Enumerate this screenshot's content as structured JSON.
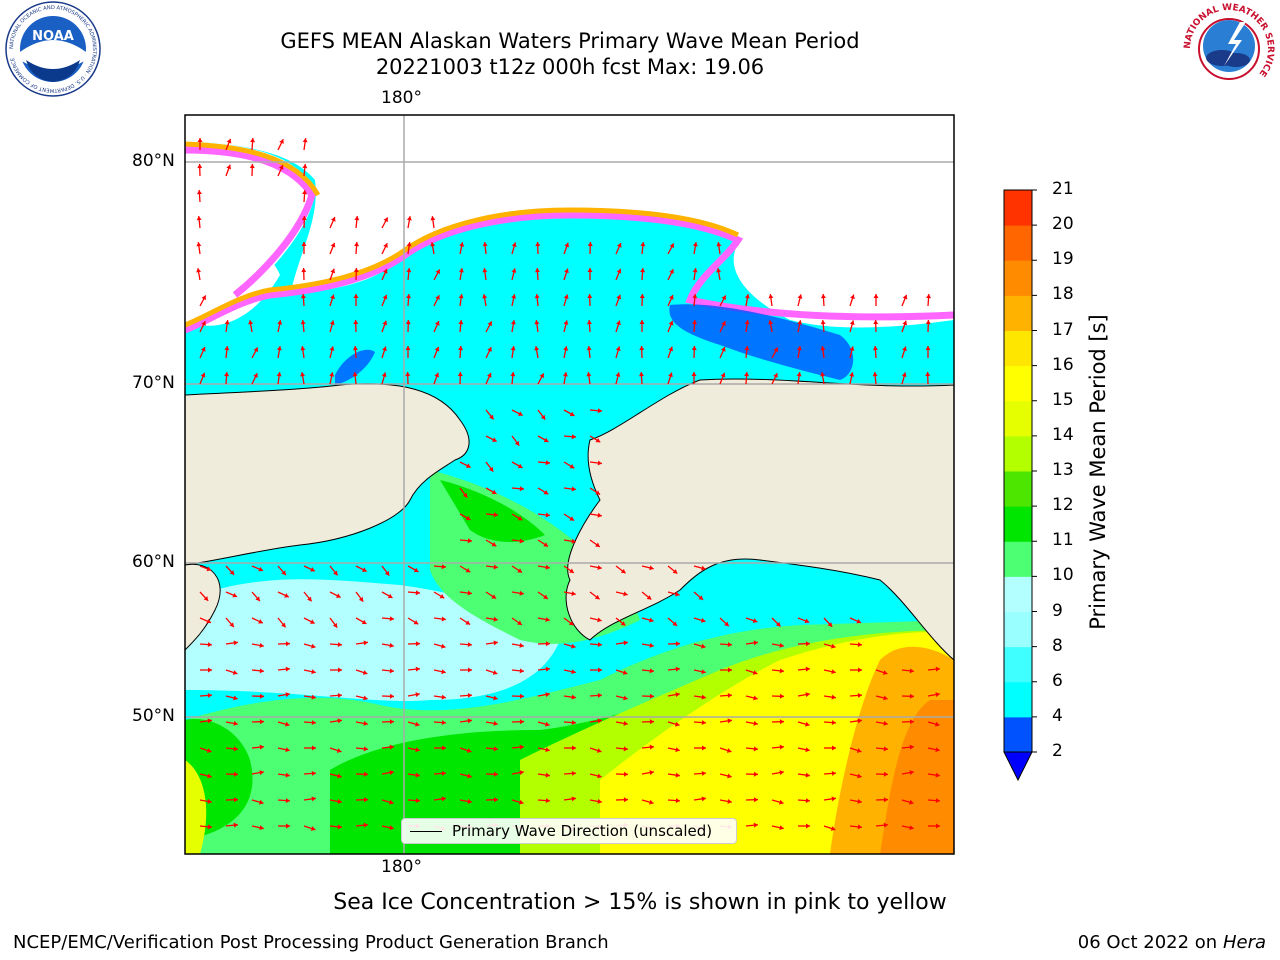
{
  "title": {
    "line1": "GEFS MEAN Alaskan Waters Primary Wave Mean Period",
    "line2": "20221003 t12z 000h fcst   Max: 19.06"
  },
  "map": {
    "top_lon_label": "180°",
    "bottom_lon_label": "180°",
    "lat_labels": [
      "80°N",
      "70°N",
      "60°N",
      "50°N"
    ],
    "legend_text": "Primary Wave Direction (unscaled)",
    "arrow_color": "#ff0000",
    "land_color": "#efecdc"
  },
  "colorbar": {
    "label": "Primary Wave Mean Period [s]",
    "ticks": [
      "2",
      "4",
      "6",
      "8",
      "9",
      "10",
      "11",
      "12",
      "13",
      "14",
      "15",
      "16",
      "17",
      "18",
      "19",
      "20",
      "21"
    ],
    "colors": [
      "#0052ff",
      "#00ffff",
      "#40ffff",
      "#99ffff",
      "#b3ffff",
      "#4dff73",
      "#00e600",
      "#4de600",
      "#b3ff00",
      "#e6ff00",
      "#ffff00",
      "#ffe600",
      "#ffb300",
      "#ff8c00",
      "#ff6600",
      "#ff3300",
      "#ff0000"
    ],
    "under_color": "#0000ff"
  },
  "footnote": "Sea Ice Concentration > 15% is shown in pink to yellow",
  "credits": {
    "left": "NCEP/EMC/Verification Post Processing Product Generation Branch",
    "date": "06 Oct 2022 on ",
    "host": "Hera"
  },
  "logos": {
    "noaa_text": "NOAA",
    "noaa_ring": "NATIONAL OCEANIC AND ATMOSPHERIC ADMINISTRATION · U.S. DEPARTMENT OF COMMERCE",
    "nws_ring": "NATIONAL WEATHER SERVICE"
  }
}
